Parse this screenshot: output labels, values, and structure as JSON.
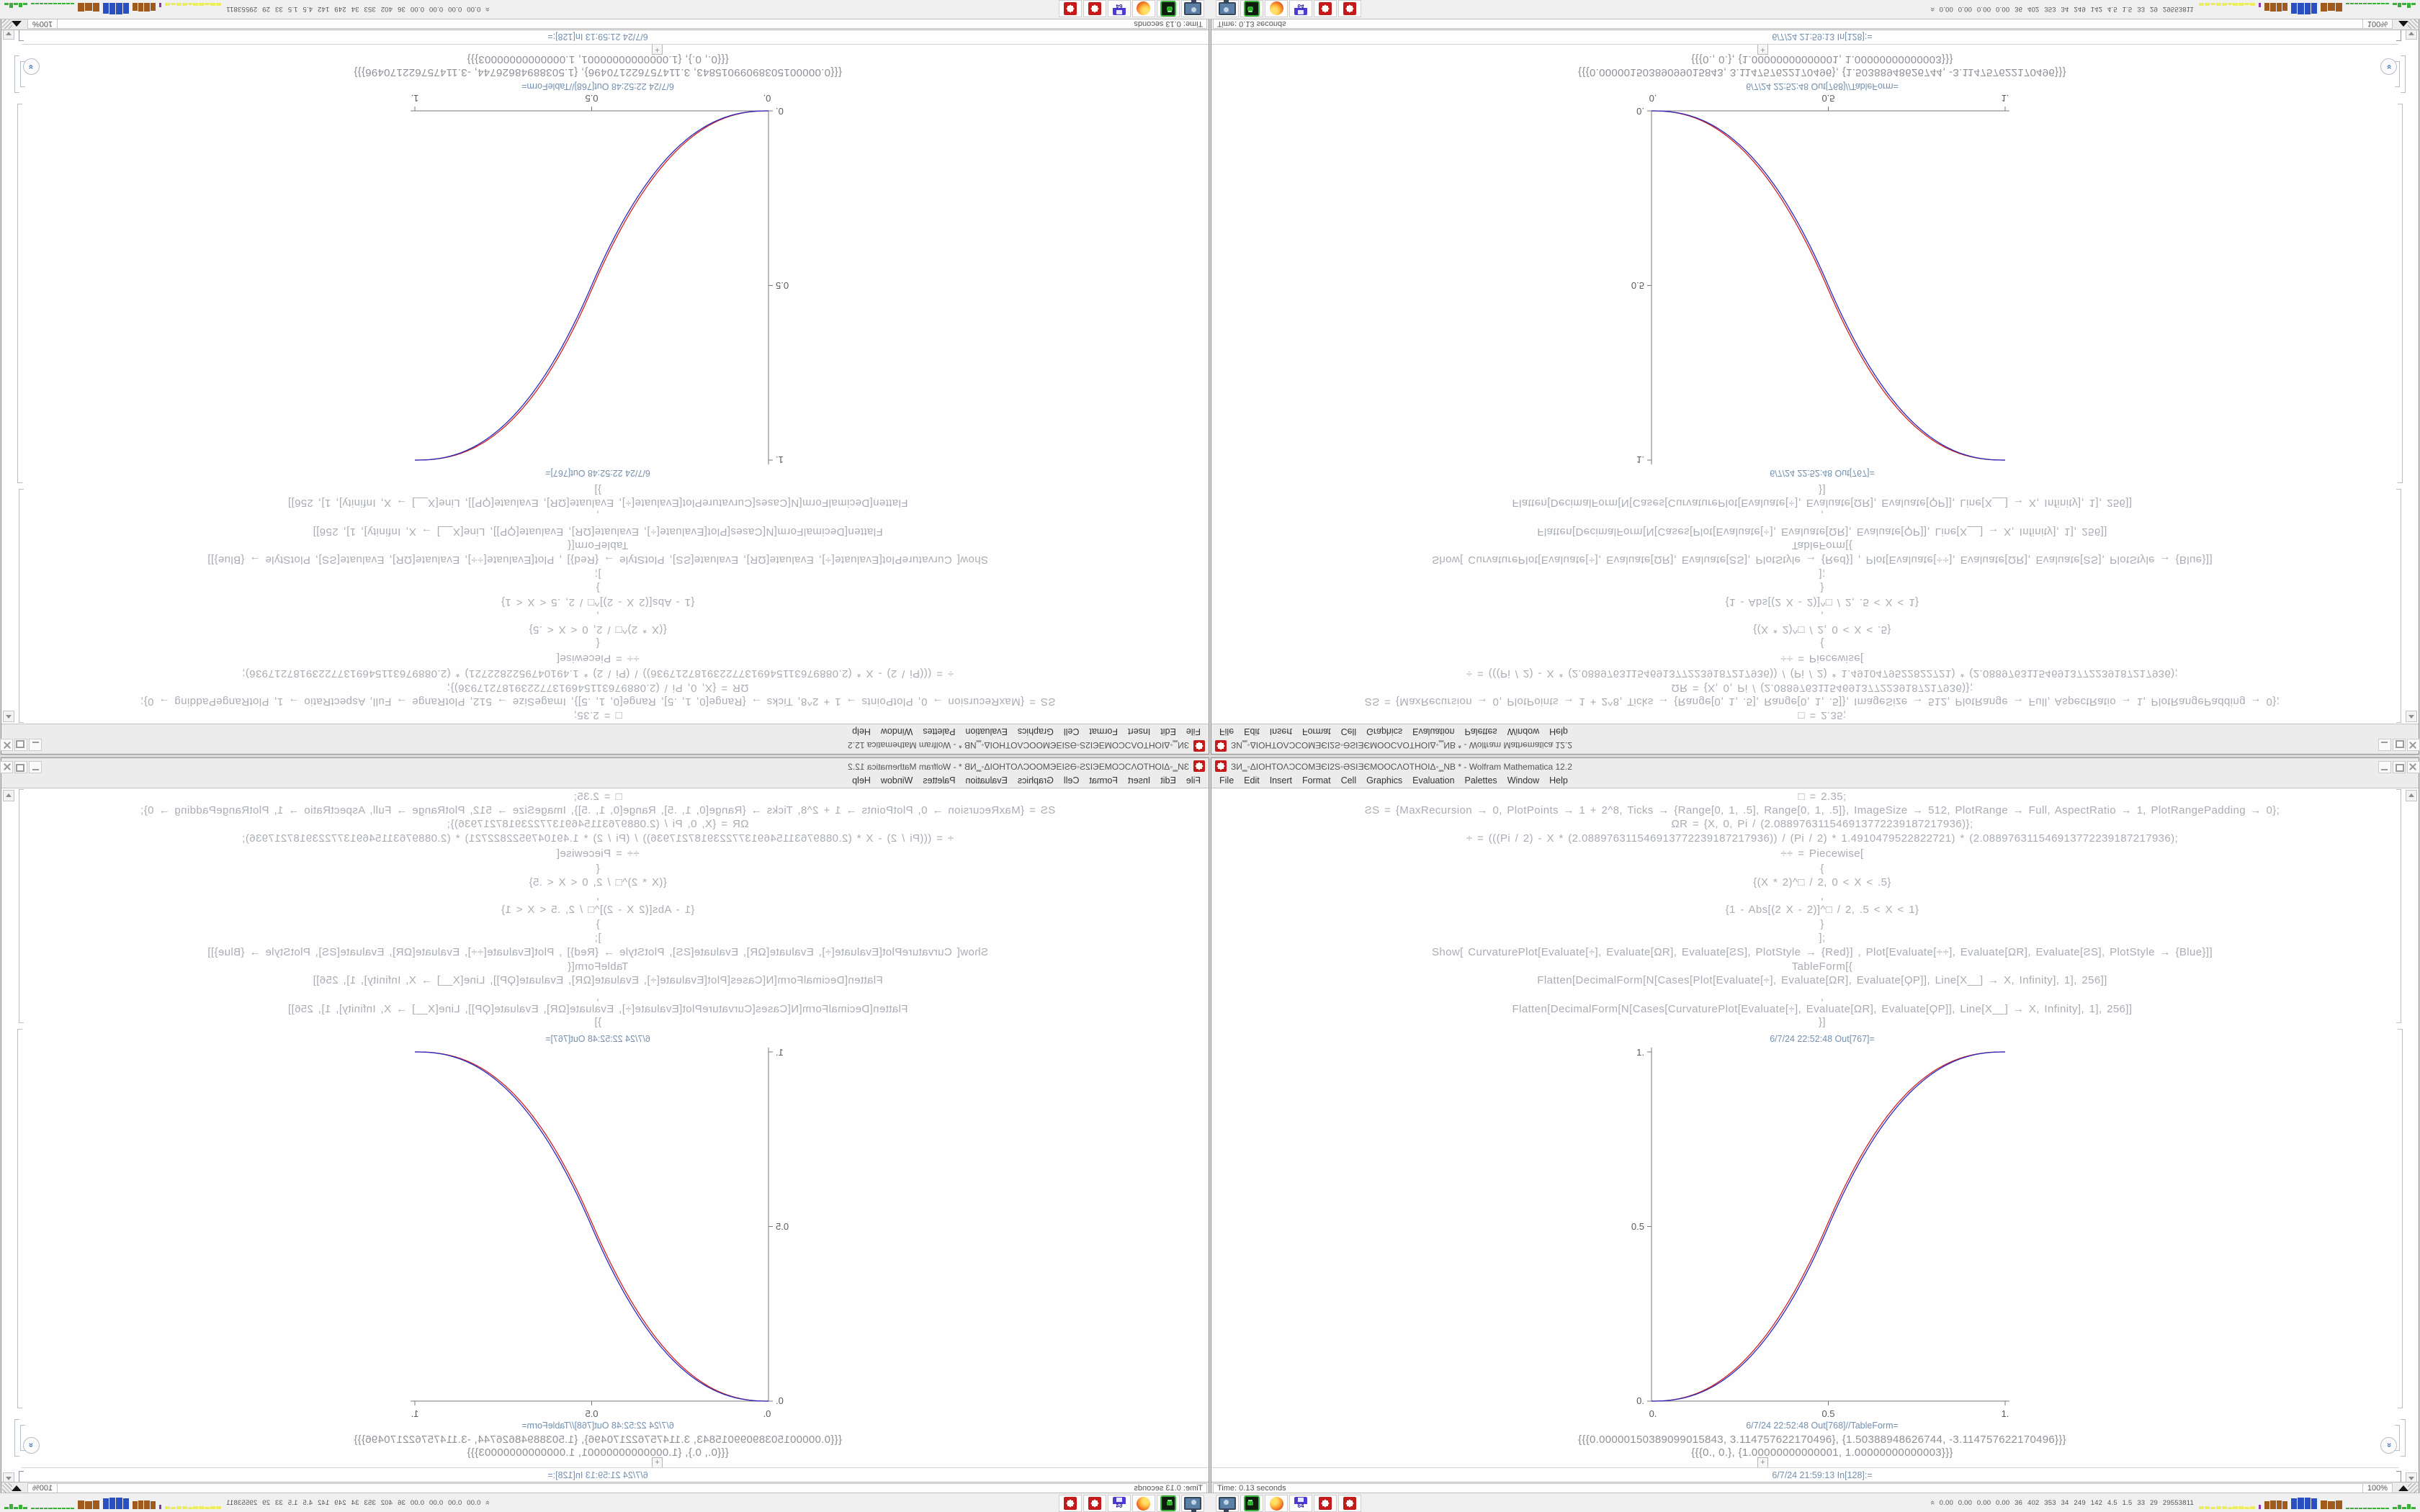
{
  "app": {
    "title": "ЗИ‗◦ΔIOHTOΛƆCOMƎЄI2S◦ƏSIƎЄMOOCΛOTHOIΔ◦‗NB * - Wolfram Mathematica 12.2",
    "menu": [
      "File",
      "Edit",
      "Insert",
      "Format",
      "Cell",
      "Graphics",
      "Evaluation",
      "Palettes",
      "Window",
      "Help"
    ],
    "cells": [
      {
        "type": "code",
        "text": "□ = 2.35;"
      },
      {
        "type": "code",
        "text": "ƧS = {MaxRecursion → 0, PlotPoints → 1 + 2^8, Ticks → {Range[0, 1, .5], Range[0, 1, .5]}, ImageSize → 512, PlotRange → Full, AspectRatio → 1, PlotRangePadding → 0};"
      },
      {
        "type": "code",
        "text": "ΩR = {X, 0, Pi / (2.088976311546913772239187217936)};"
      },
      {
        "type": "code",
        "text": "÷ = (((Pi / 2) - X * (2.088976311546913772239187217936)) / (Pi / 2) * 1.4910479522822721) * (2.088976311546913772239187217936);"
      },
      {
        "type": "code",
        "text": "÷÷ = Piecewise["
      },
      {
        "type": "code",
        "text": "{"
      },
      {
        "type": "code",
        "text": "{(X * 2)^□ / 2, 0 < X < .5}"
      },
      {
        "type": "code",
        "text": ","
      },
      {
        "type": "code",
        "text": "{1 - Abs[(2 X - 2)]^□ / 2, .5 < X < 1}"
      },
      {
        "type": "code",
        "text": "}"
      },
      {
        "type": "code",
        "text": "];"
      },
      {
        "type": "code",
        "text": "Show[   CurvaturePlot[Evaluate[÷], Evaluate[ΩR], Evaluate[ƧS], PlotStyle → {Red}]   ,   Plot[Evaluate[÷÷], Evaluate[ΩR], Evaluate[ƧS], PlotStyle → {Blue}]]"
      },
      {
        "type": "code",
        "text": "TableForm[{"
      },
      {
        "type": "code",
        "text": "Flatten[DecimalForm[N[Cases[Plot[Evaluate[÷], Evaluate[ΩR], Evaluate[ϘΡ]], Line[X__] → X, Infinity], 1], 256]]"
      },
      {
        "type": "code",
        "text": ","
      },
      {
        "type": "code",
        "text": "Flatten[DecimalForm[N[Cases[CurvaturePlot[Evaluate[÷], Evaluate[ΩR], Evaluate[ϘΡ]], Line[X__] → X, Infinity], 1], 256]]"
      },
      {
        "type": "code",
        "text": "}]"
      },
      {
        "type": "label",
        "text": "6/7/24 22:52:48 Out[767]="
      }
    ],
    "out_table_label": "6/7/24 22:52:48 Out[768]//TableForm=",
    "table_rows": [
      "{{{0.00000150389099015843, 3.114757622170496}, {1.50388948626744, -3.114757622170496}}}",
      "{{{0., 0.}, {1.00000000000001, 1.00000000000003}}}"
    ],
    "in_prompt": "6/7/24 21:59:13 In[128]:=",
    "insert_plus": "+",
    "status": {
      "time": "Time: 0.13 seconds",
      "zoom": "100%"
    }
  },
  "taskbar": {
    "icons": [
      {
        "name": "display-settings-icon",
        "cls": "i-monitor"
      },
      {
        "name": "green-drive-app-icon",
        "cls": "i-green"
      },
      {
        "name": "firefox-browser-icon",
        "cls": "i-firefox"
      },
      {
        "name": "floppy-64-app-icon",
        "cls": "i-floppy",
        "glyph": "64"
      },
      {
        "name": "mathematica-spikey-icon",
        "cls": "i-spikey"
      },
      {
        "name": "mathematica-spikey-icon-2",
        "cls": "i-spikey"
      }
    ],
    "tray": {
      "indicator_icon": "double-chevron-up",
      "text": "0.00 0.00 0.00 0.00  36  402  353  34  249  142  4.5  1.5  33  29  29553811",
      "sparklines": [
        {
          "name": "tray-graph-yellow",
          "color": "#ecec62",
          "width": 78,
          "heights": [
            4,
            4,
            3,
            4,
            4,
            3,
            4,
            4,
            3,
            4
          ]
        },
        {
          "name": "tray-graph-purple-tick",
          "color": "#8a34a8",
          "width": 3,
          "heights": [
            6
          ]
        },
        {
          "name": "tray-graph-brown-1",
          "color": "#a05a1e",
          "width": 32,
          "heights": [
            11,
            12,
            12,
            11
          ]
        },
        {
          "name": "tray-graph-blue",
          "color": "#2a4fc0",
          "width": 36,
          "heights": [
            15,
            16,
            16,
            15
          ]
        },
        {
          "name": "tray-graph-brown-2",
          "color": "#a05a1e",
          "width": 30,
          "heights": [
            12,
            11,
            12
          ]
        },
        {
          "name": "tray-graph-green-line",
          "color": "#3ab03a",
          "width": 60,
          "heights": [
            2,
            2,
            2,
            2,
            2,
            2,
            2,
            2,
            2,
            2
          ]
        },
        {
          "name": "tray-graph-green-spikes",
          "color": "#3ab03a",
          "width": 32,
          "heights": [
            3,
            6,
            3,
            7,
            3
          ]
        }
      ]
    }
  },
  "chart_data": {
    "type": "line",
    "title": "6/7/24 22:52:48 Out[767]=",
    "xlabel": "",
    "ylabel": "",
    "xlim": [
      0,
      1
    ],
    "ylim": [
      0,
      1
    ],
    "grid": false,
    "legend": "none",
    "x_tick_labels": [
      "0.",
      "0.5",
      "1."
    ],
    "y_tick_labels": [
      "0.",
      "0.5",
      "1."
    ],
    "exponent": 2.35,
    "red_offset": 0.012,
    "x": [
      0,
      0.1,
      0.2,
      0.3,
      0.4,
      0.5,
      0.6,
      0.7,
      0.8,
      0.9,
      1
    ],
    "series": [
      {
        "name": "CurvaturePlot (Red)",
        "color": "#cf2222",
        "values": [
          0,
          0.0125,
          0.0622,
          0.1583,
          0.3069,
          0.512,
          0.7148,
          0.8574,
          0.9461,
          0.9898,
          1
        ]
      },
      {
        "name": "Piecewise Plot (Blue)",
        "color": "#2a2ac0",
        "values": [
          0,
          0.0114,
          0.0581,
          0.1505,
          0.2961,
          0.5,
          0.7039,
          0.8495,
          0.9419,
          0.9886,
          1
        ]
      }
    ]
  }
}
